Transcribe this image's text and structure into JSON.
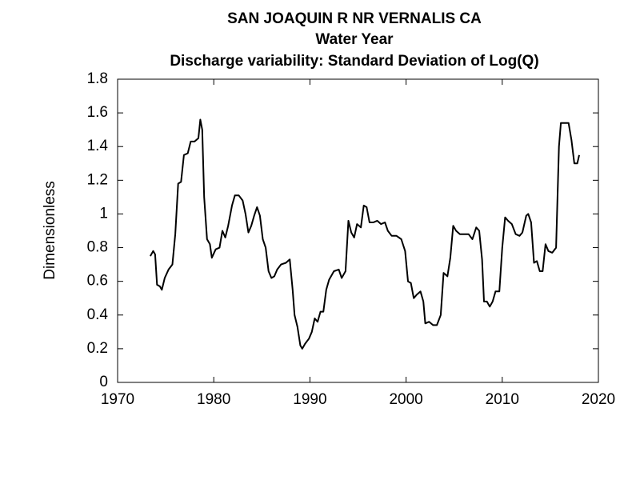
{
  "chart_data": {
    "type": "line",
    "title_lines": [
      "SAN JOAQUIN R NR VERNALIS CA",
      "Water Year",
      "Discharge variability: Standard Deviation of Log(Q)"
    ],
    "ylabel": "Dimensionless",
    "color": "#000000",
    "xlim": [
      1970,
      2020
    ],
    "xticks": [
      1970,
      1980,
      1990,
      2000,
      2010,
      2020
    ],
    "ylim": [
      0,
      1.8
    ],
    "yticks": [
      0,
      0.2,
      0.4,
      0.6,
      0.8,
      1,
      1.2,
      1.4,
      1.6,
      1.8
    ],
    "x": [
      1973.4,
      1973.7,
      1973.9,
      1974.1,
      1974.4,
      1974.6,
      1974.9,
      1975.3,
      1975.7,
      1976.0,
      1976.3,
      1976.6,
      1976.9,
      1977.3,
      1977.6,
      1978.0,
      1978.4,
      1978.6,
      1978.8,
      1979.0,
      1979.3,
      1979.6,
      1979.8,
      1980.2,
      1980.6,
      1980.9,
      1981.2,
      1981.5,
      1981.9,
      1982.2,
      1982.6,
      1983.0,
      1983.3,
      1983.6,
      1983.9,
      1984.2,
      1984.5,
      1984.8,
      1985.1,
      1985.4,
      1985.7,
      1986.0,
      1986.3,
      1986.6,
      1987.0,
      1987.5,
      1987.9,
      1988.2,
      1988.4,
      1988.7,
      1989.0,
      1989.2,
      1989.5,
      1989.9,
      1990.2,
      1990.5,
      1990.8,
      1991.1,
      1991.4,
      1991.7,
      1992.0,
      1992.5,
      1993.0,
      1993.3,
      1993.7,
      1994.0,
      1994.3,
      1994.6,
      1994.9,
      1995.3,
      1995.6,
      1995.9,
      1996.2,
      1996.6,
      1997.0,
      1997.4,
      1997.8,
      1998.1,
      1998.5,
      1999.0,
      1999.5,
      1999.9,
      2000.2,
      2000.5,
      2000.8,
      2001.1,
      2001.5,
      2001.8,
      2002.0,
      2002.4,
      2002.8,
      2003.2,
      2003.6,
      2003.9,
      2004.3,
      2004.6,
      2004.9,
      2005.2,
      2005.6,
      2006.0,
      2006.5,
      2006.9,
      2007.3,
      2007.6,
      2007.9,
      2008.1,
      2008.4,
      2008.7,
      2009.0,
      2009.3,
      2009.7,
      2010.0,
      2010.3,
      2010.6,
      2011.0,
      2011.4,
      2011.8,
      2012.1,
      2012.5,
      2012.7,
      2013.0,
      2013.3,
      2013.6,
      2013.9,
      2014.2,
      2014.5,
      2014.8,
      2015.2,
      2015.6,
      2015.9,
      2016.1,
      2016.5,
      2016.9,
      2017.2,
      2017.5,
      2017.8,
      2018.0
    ],
    "values": [
      0.75,
      0.78,
      0.76,
      0.58,
      0.57,
      0.55,
      0.62,
      0.67,
      0.7,
      0.88,
      1.18,
      1.19,
      1.35,
      1.36,
      1.43,
      1.43,
      1.45,
      1.56,
      1.5,
      1.1,
      0.85,
      0.82,
      0.74,
      0.79,
      0.8,
      0.9,
      0.86,
      0.93,
      1.05,
      1.11,
      1.11,
      1.08,
      1.0,
      0.89,
      0.93,
      0.99,
      1.04,
      0.99,
      0.85,
      0.8,
      0.66,
      0.62,
      0.63,
      0.67,
      0.7,
      0.71,
      0.73,
      0.55,
      0.4,
      0.33,
      0.22,
      0.2,
      0.23,
      0.26,
      0.3,
      0.38,
      0.36,
      0.42,
      0.42,
      0.55,
      0.61,
      0.66,
      0.67,
      0.62,
      0.66,
      0.96,
      0.89,
      0.86,
      0.94,
      0.92,
      1.05,
      1.04,
      0.95,
      0.95,
      0.96,
      0.94,
      0.95,
      0.9,
      0.87,
      0.87,
      0.85,
      0.78,
      0.6,
      0.59,
      0.5,
      0.52,
      0.54,
      0.48,
      0.35,
      0.36,
      0.34,
      0.34,
      0.4,
      0.65,
      0.63,
      0.74,
      0.93,
      0.9,
      0.88,
      0.88,
      0.88,
      0.85,
      0.92,
      0.9,
      0.73,
      0.48,
      0.48,
      0.45,
      0.48,
      0.54,
      0.54,
      0.8,
      0.98,
      0.96,
      0.94,
      0.88,
      0.87,
      0.89,
      0.99,
      1.0,
      0.95,
      0.71,
      0.72,
      0.66,
      0.66,
      0.82,
      0.78,
      0.77,
      0.8,
      1.4,
      1.54,
      1.54,
      1.54,
      1.44,
      1.3,
      1.3,
      1.35
    ]
  }
}
